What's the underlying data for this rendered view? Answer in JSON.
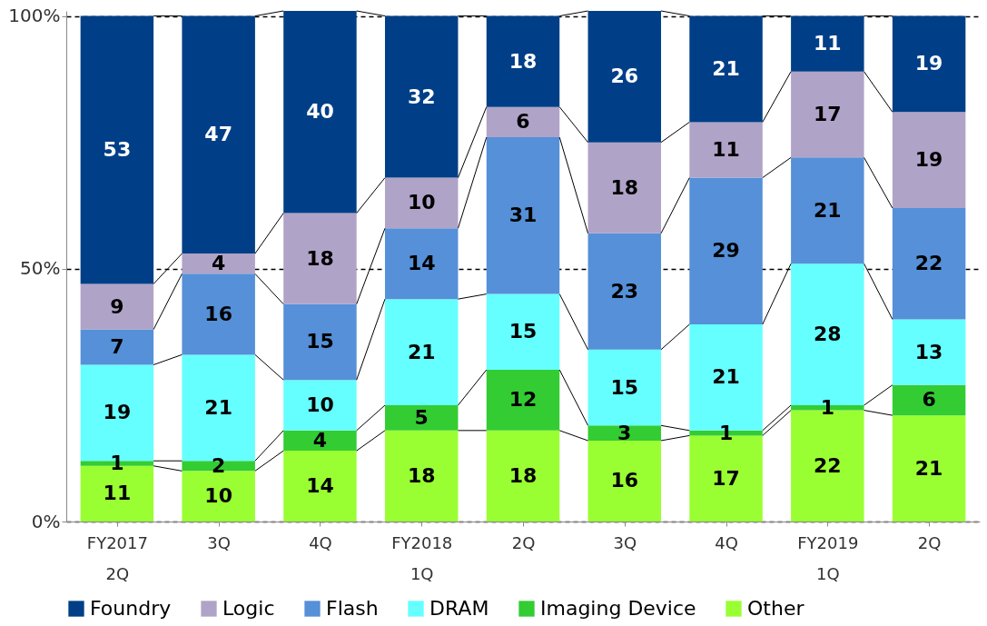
{
  "chart_data": {
    "type": "bar",
    "stacked": true,
    "categories": [
      "FY2017\n2Q",
      "3Q",
      "4Q",
      "FY2018\n1Q",
      "2Q",
      "3Q",
      "4Q",
      "FY2019\n1Q",
      "2Q"
    ],
    "series": [
      {
        "name": "Other",
        "color": "#99ff33",
        "values": [
          11,
          10,
          14,
          18,
          18,
          16,
          17,
          22,
          21
        ]
      },
      {
        "name": "Imaging Device",
        "color": "#33cc33",
        "values": [
          1,
          2,
          4,
          5,
          12,
          3,
          1,
          1,
          6
        ]
      },
      {
        "name": "DRAM",
        "color": "#66ffff",
        "values": [
          19,
          21,
          10,
          21,
          15,
          15,
          21,
          28,
          13
        ]
      },
      {
        "name": "Flash",
        "color": "#5590d8",
        "values": [
          7,
          16,
          15,
          14,
          31,
          23,
          29,
          21,
          22
        ]
      },
      {
        "name": "Logic",
        "color": "#b0a3c8",
        "values": [
          9,
          4,
          18,
          10,
          6,
          18,
          11,
          17,
          19
        ]
      },
      {
        "name": "Foundry",
        "color": "#003f87",
        "values": [
          53,
          47,
          40,
          32,
          18,
          26,
          21,
          11,
          19
        ]
      }
    ],
    "ylim": [
      0,
      101
    ],
    "yticks": [
      {
        "value": 0,
        "label": "0%"
      },
      {
        "value": 50,
        "label": "50%"
      },
      {
        "value": 100,
        "label": "100%"
      }
    ],
    "grid": "y",
    "data_labels": true,
    "legend": "bottom"
  }
}
